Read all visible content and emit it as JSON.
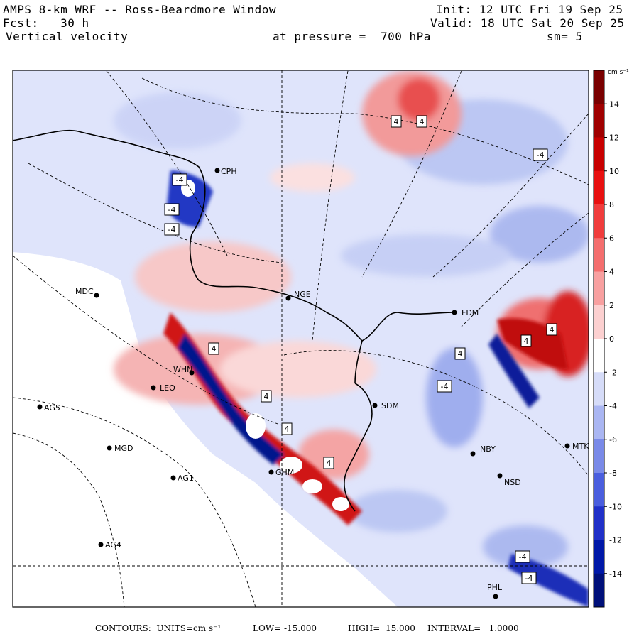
{
  "header": {
    "title": "AMPS 8-km WRF -- Ross-Beardmore Window",
    "forecast": "Fcst:   30 h",
    "field": "Vertical velocity",
    "init": "Init: 12 UTC Fri 19 Sep 25",
    "valid": "Valid: 18 UTC Sat 20 Sep 25",
    "pressure": "at pressure =  700 hPa",
    "smoothing": "sm= 5"
  },
  "colorbar": {
    "units": "cm s⁻¹",
    "ticks": [
      "14",
      "12",
      "10",
      "8",
      "6",
      "4",
      "2",
      "0",
      "-2",
      "-4",
      "-6",
      "-8",
      "-10",
      "-12",
      "-14"
    ],
    "colors": [
      "#7a0000",
      "#a00000",
      "#c80000",
      "#e81010",
      "#f03c3c",
      "#f46e6e",
      "#f8a0a0",
      "#fcd0d0",
      "#ffffff",
      "#d6dcf8",
      "#aab6f2",
      "#7a8ae8",
      "#4a5ede",
      "#2030c8",
      "#0018a8",
      "#00107a"
    ]
  },
  "stations": [
    {
      "label": "CPH"
    },
    {
      "label": "MDC"
    },
    {
      "label": "NGE"
    },
    {
      "label": "FDM"
    },
    {
      "label": "LEO"
    },
    {
      "label": "AG5"
    },
    {
      "label": "MGD"
    },
    {
      "label": "AG1"
    },
    {
      "label": "AG4"
    },
    {
      "label": "SDM"
    },
    {
      "label": "NBY"
    },
    {
      "label": "GHM"
    },
    {
      "label": "MTK"
    },
    {
      "label": "NSD"
    },
    {
      "label": "PHL"
    },
    {
      "label": "WHN"
    }
  ],
  "contour_labels": [
    "4",
    "4",
    "-4",
    "-4",
    "-4",
    "4",
    "4",
    "-4",
    "4",
    "4",
    "4",
    "4",
    "-4",
    "4",
    "-4",
    "-4"
  ],
  "footer": {
    "contours": "CONTOURS:  UNITS=cm s⁻¹",
    "low": "LOW= -15.000",
    "high": "HIGH=  15.000",
    "interval": "INTERVAL=   1.0000"
  },
  "colors": {
    "positive": "#e83030",
    "negative": "#3050d8",
    "land": "#ffffff",
    "frame": "#000000"
  }
}
